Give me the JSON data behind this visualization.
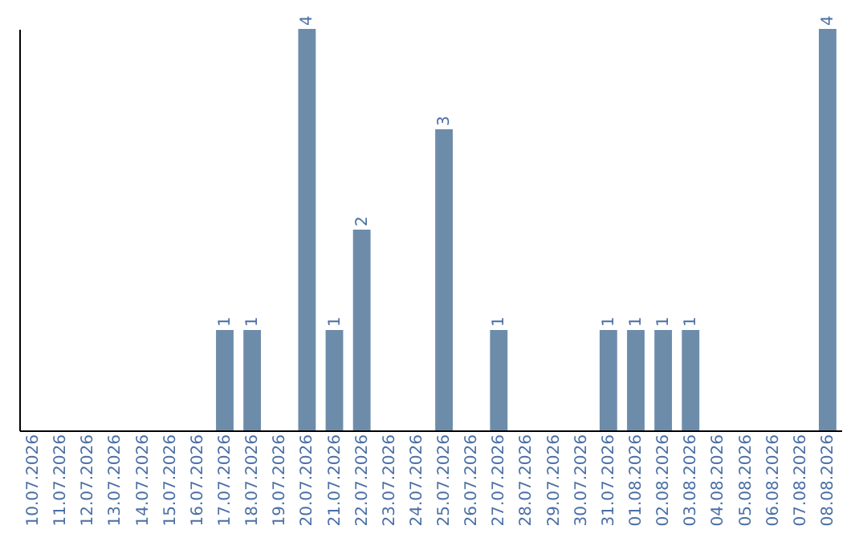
{
  "chart_data": {
    "type": "bar",
    "categories": [
      "10.07.2026",
      "11.07.2026",
      "12.07.2026",
      "13.07.2026",
      "14.07.2026",
      "15.07.2026",
      "16.07.2026",
      "17.07.2026",
      "18.07.2026",
      "19.07.2026",
      "20.07.2026",
      "21.07.2026",
      "22.07.2026",
      "23.07.2026",
      "24.07.2026",
      "25.07.2026",
      "26.07.2026",
      "27.07.2026",
      "28.07.2026",
      "29.07.2026",
      "30.07.2026",
      "31.07.2026",
      "01.08.2026",
      "02.08.2026",
      "03.08.2026",
      "04.08.2026",
      "05.08.2026",
      "06.08.2026",
      "07.08.2026",
      "08.08.2026"
    ],
    "values": [
      0,
      0,
      0,
      0,
      0,
      0,
      0,
      1,
      1,
      0,
      4,
      1,
      2,
      0,
      0,
      3,
      0,
      1,
      0,
      0,
      0,
      1,
      1,
      1,
      1,
      0,
      0,
      0,
      0,
      4
    ],
    "value_labels": [
      null,
      null,
      null,
      null,
      null,
      null,
      null,
      "1",
      "1",
      null,
      "4",
      "1",
      "2",
      null,
      null,
      "3",
      null,
      "1",
      null,
      null,
      null,
      "1",
      "1",
      "1",
      "1",
      null,
      null,
      null,
      null,
      "4"
    ],
    "color": "#6d8caa",
    "tick_labels": "x",
    "grid": false
  }
}
